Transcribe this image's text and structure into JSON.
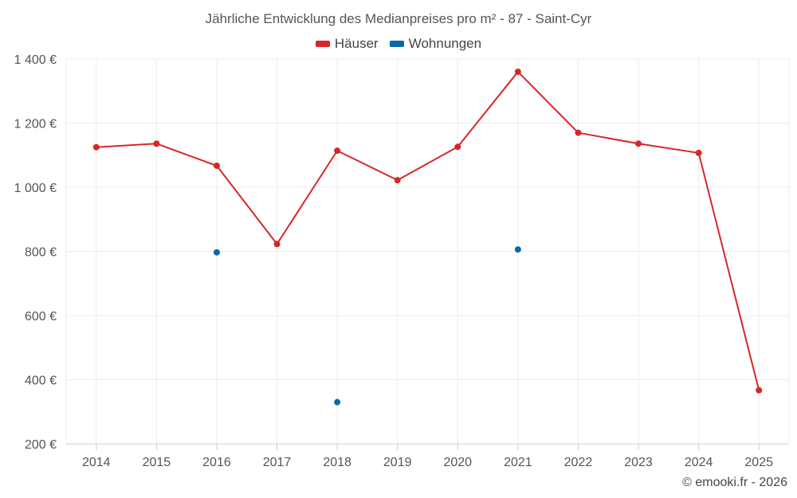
{
  "chart_data": {
    "type": "line",
    "title": "Jährliche Entwicklung des Medianpreises pro m² - 87 - Saint-Cyr",
    "categories": [
      "2014",
      "2015",
      "2016",
      "2017",
      "2018",
      "2019",
      "2020",
      "2021",
      "2022",
      "2023",
      "2024",
      "2025"
    ],
    "ylim": [
      200,
      1400
    ],
    "yticks": [
      200,
      400,
      600,
      800,
      1000,
      1200,
      1400
    ],
    "ytick_labels": [
      "200 €",
      "400 €",
      "600 €",
      "800 €",
      "1 000 €",
      "1 200 €",
      "1 400 €"
    ],
    "legend_position": "top-center",
    "series": [
      {
        "name": "Häuser",
        "color": "#d62728",
        "values": [
          1125,
          1136,
          1067,
          823,
          1114,
          1022,
          1126,
          1360,
          1170,
          1136,
          1107,
          367
        ]
      },
      {
        "name": "Wohnungen",
        "color": "#0b68a8",
        "values": [
          null,
          null,
          797,
          null,
          330,
          null,
          null,
          806,
          null,
          null,
          null,
          null
        ]
      }
    ]
  },
  "footer": {
    "text": "© emooki.fr - 2026"
  }
}
